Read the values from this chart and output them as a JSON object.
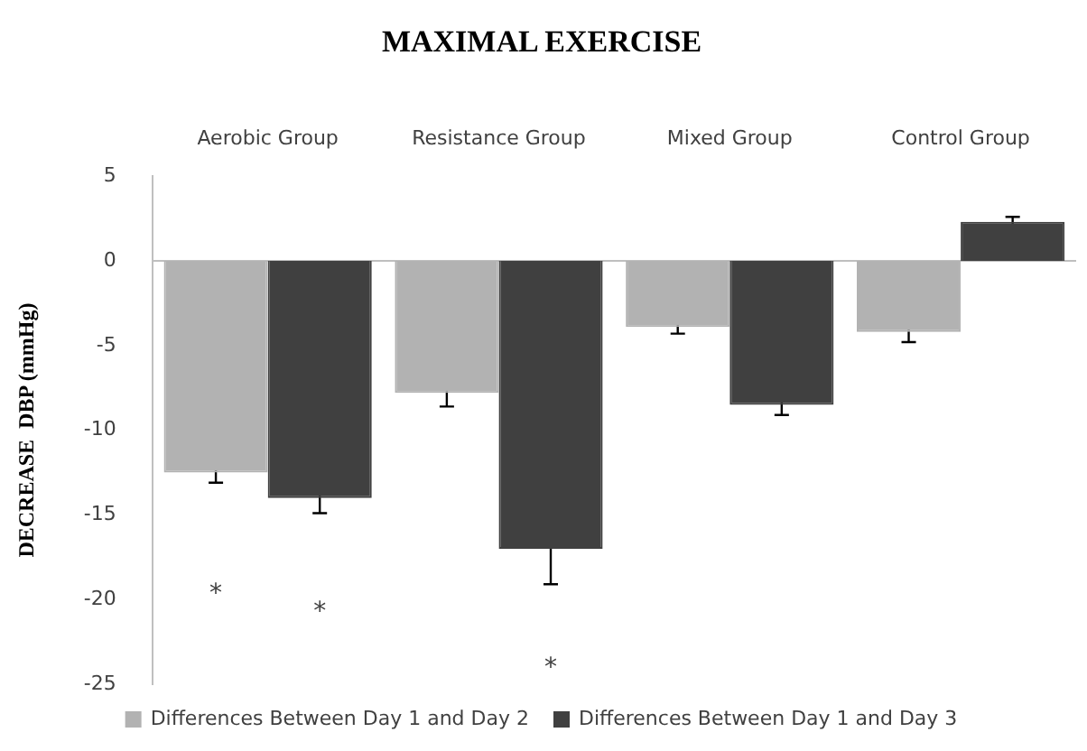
{
  "chart_data": {
    "type": "bar",
    "title": "MAXIMAL EXERCISE",
    "ylabel": "DECREASE  DBP (mmHg)",
    "categories": [
      "Aerobic Group",
      "Resistance Group",
      "Mixed Group",
      "Control Group"
    ],
    "series": [
      {
        "name": "Differences Between Day 1 and Day 2",
        "color": "#b2b2b2",
        "values": [
          -12.5,
          -7.8,
          -3.9,
          -4.2
        ],
        "errors": [
          0.6,
          0.8,
          0.4,
          0.6
        ]
      },
      {
        "name": "Differences Between Day 1 and Day 3",
        "color": "#404040",
        "values": [
          -14.0,
          -17.0,
          -8.5,
          2.3
        ],
        "errors": [
          0.9,
          2.1,
          0.6,
          0.3
        ]
      }
    ],
    "ylim": [
      -25,
      5
    ],
    "yticks": [
      -25,
      -20,
      -15,
      -10,
      -5,
      0,
      5
    ],
    "grid": false,
    "legend": "bottom",
    "ref_lines": [
      {
        "axis": "y",
        "value": 0,
        "color": "#bfbfbf"
      }
    ],
    "annotations": [
      "*",
      "*",
      "*"
    ]
  }
}
